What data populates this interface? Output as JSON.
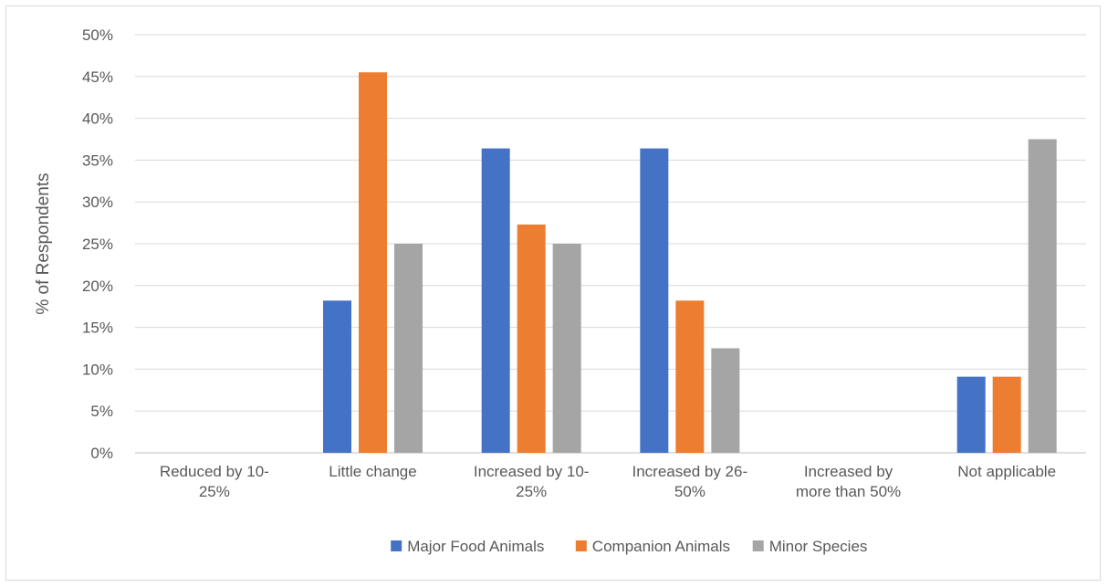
{
  "chart_data": {
    "type": "bar",
    "title": "",
    "xlabel": "",
    "ylabel": "% of Respondents",
    "ylim": [
      0,
      50
    ],
    "yticks": [
      "0%",
      "5%",
      "10%",
      "15%",
      "20%",
      "25%",
      "30%",
      "35%",
      "40%",
      "45%",
      "50%"
    ],
    "grid": true,
    "legend_position": "bottom",
    "categories": [
      [
        "Reduced by 10-",
        "25%"
      ],
      [
        "Little change"
      ],
      [
        "Increased by 10-",
        "25%"
      ],
      [
        "Increased by 26-",
        "50%"
      ],
      [
        "Increased by",
        "more than 50%"
      ],
      [
        "Not applicable"
      ]
    ],
    "series": [
      {
        "name": "Major Food Animals",
        "color": "#4472c4",
        "values": [
          0,
          18.2,
          36.4,
          36.4,
          0,
          9.1
        ]
      },
      {
        "name": "Companion Animals",
        "color": "#ed7d31",
        "values": [
          0,
          45.5,
          27.3,
          18.2,
          0,
          9.1
        ]
      },
      {
        "name": "Minor Species",
        "color": "#a5a5a5",
        "values": [
          0,
          25.0,
          25.0,
          12.5,
          0,
          37.5
        ]
      }
    ]
  }
}
